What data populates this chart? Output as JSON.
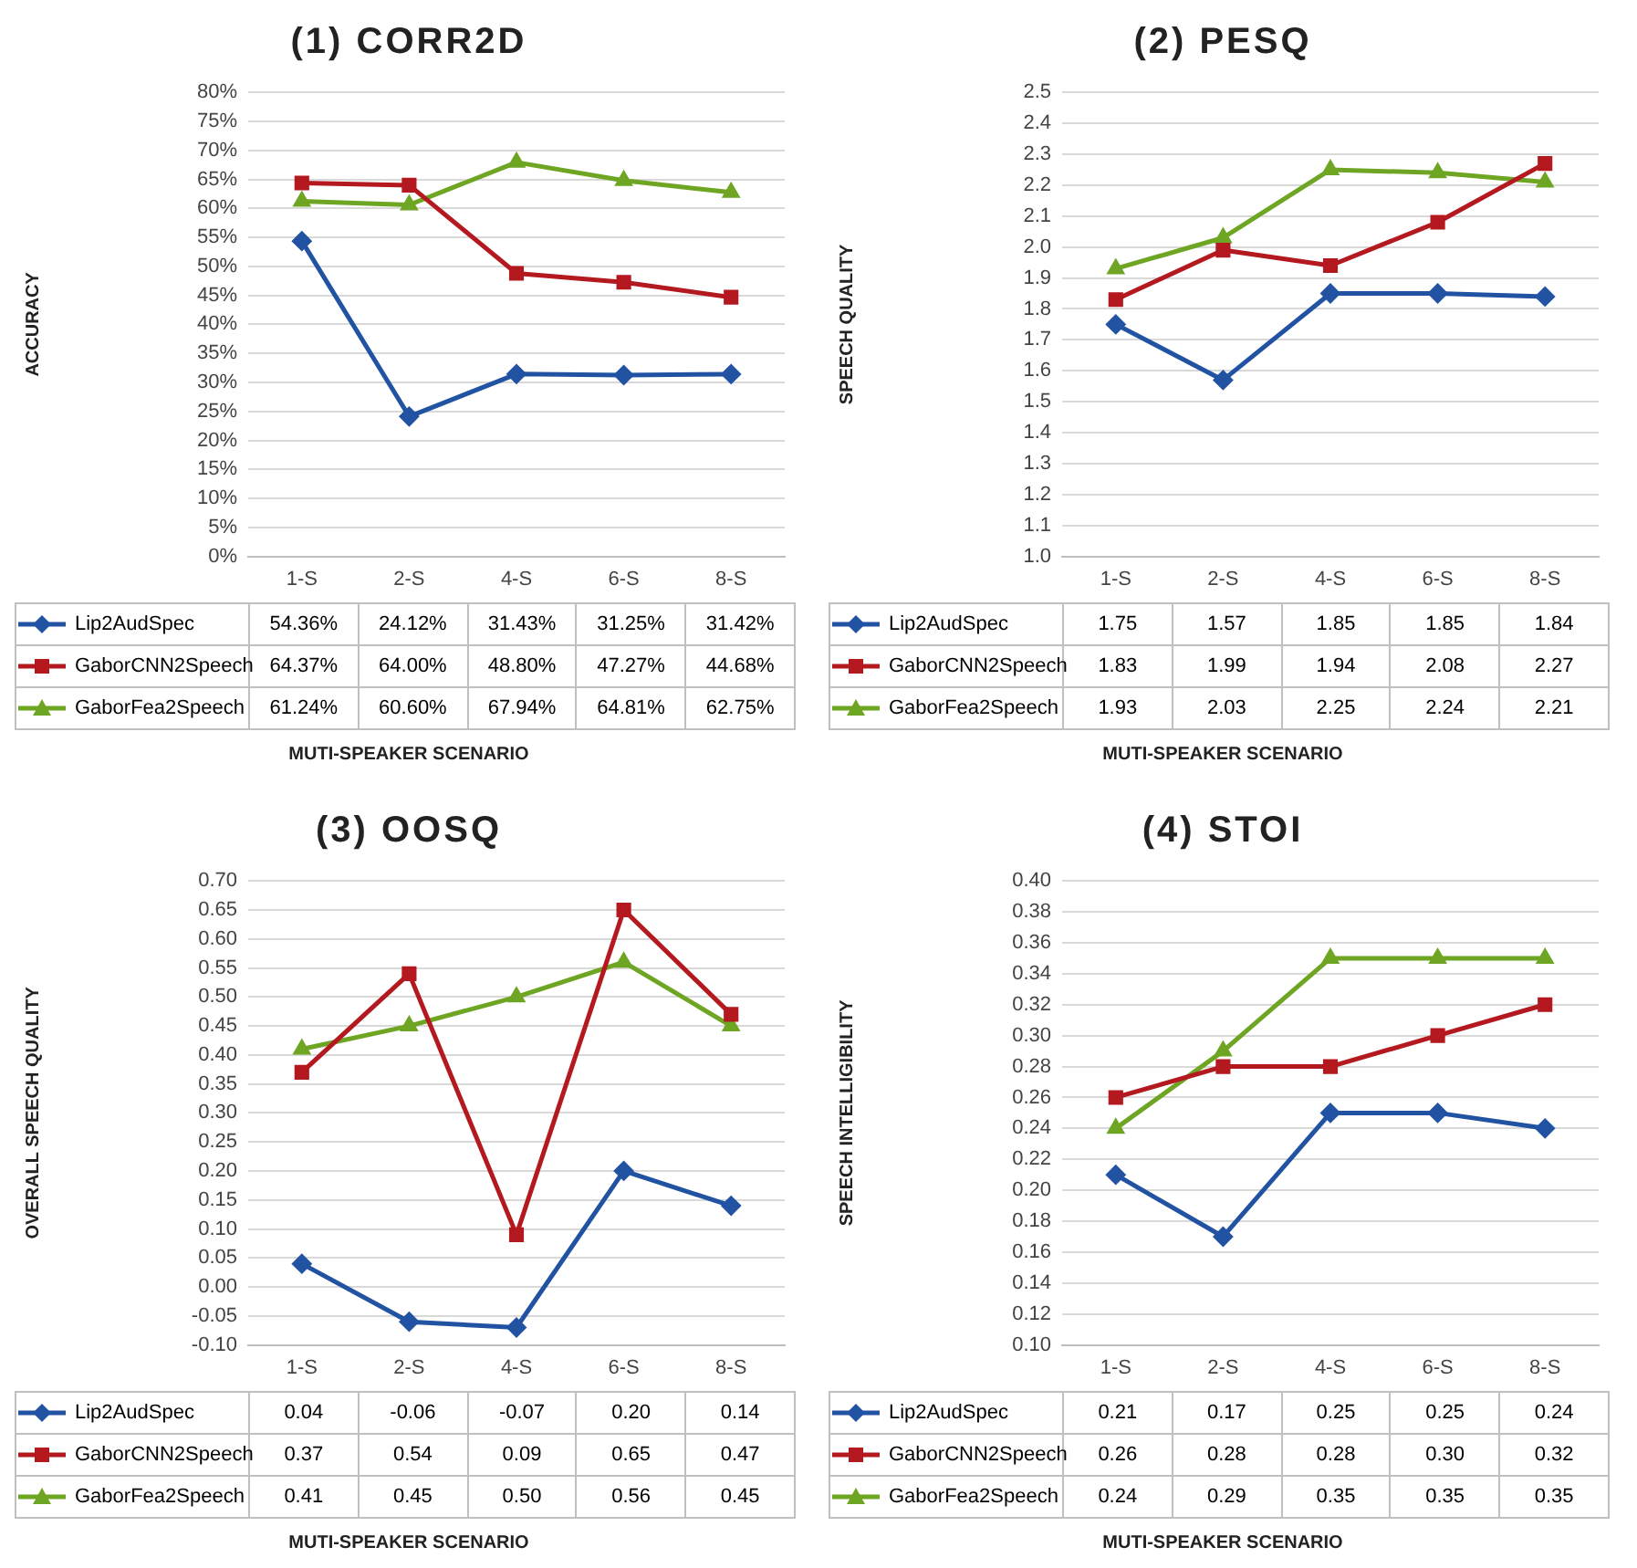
{
  "chart_data": [
    {
      "type": "line",
      "title": "(1) CORR2D",
      "ylabel": "ACCURACY",
      "xlabel": "MUTI-SPEAKER SCENARIO",
      "categories": [
        "1-S",
        "2-S",
        "4-S",
        "6-S",
        "8-S"
      ],
      "ylim": [
        0,
        80
      ],
      "yticks": [
        {
          "value": 0,
          "label": "0%"
        },
        {
          "value": 5,
          "label": "5%"
        },
        {
          "value": 10,
          "label": "10%"
        },
        {
          "value": 15,
          "label": "15%"
        },
        {
          "value": 20,
          "label": "20%"
        },
        {
          "value": 25,
          "label": "25%"
        },
        {
          "value": 30,
          "label": "30%"
        },
        {
          "value": 35,
          "label": "35%"
        },
        {
          "value": 40,
          "label": "40%"
        },
        {
          "value": 45,
          "label": "45%"
        },
        {
          "value": 50,
          "label": "50%"
        },
        {
          "value": 55,
          "label": "55%"
        },
        {
          "value": 60,
          "label": "60%"
        },
        {
          "value": 65,
          "label": "65%"
        },
        {
          "value": 70,
          "label": "70%"
        },
        {
          "value": 75,
          "label": "75%"
        },
        {
          "value": 80,
          "label": "80%"
        }
      ],
      "grid": "y",
      "legend": "bottom",
      "series": [
        {
          "name": "Lip2AudSpec",
          "color": "#2253a3",
          "marker": "diamond",
          "values": [
            54.36,
            24.12,
            31.43,
            31.25,
            31.42
          ],
          "value_labels": [
            "54.36%",
            "24.12%",
            "31.43%",
            "31.25%",
            "31.42%"
          ]
        },
        {
          "name": "GaborCNN2Speech",
          "color": "#b3191e",
          "marker": "square",
          "values": [
            64.37,
            64.0,
            48.8,
            47.27,
            44.68
          ],
          "value_labels": [
            "64.37%",
            "64.00%",
            "48.80%",
            "47.27%",
            "44.68%"
          ]
        },
        {
          "name": "GaborFea2Speech",
          "color": "#6ea523",
          "marker": "triangle",
          "values": [
            61.24,
            60.6,
            67.94,
            64.81,
            62.75
          ],
          "value_labels": [
            "61.24%",
            "60.60%",
            "67.94%",
            "64.81%",
            "62.75%"
          ]
        }
      ]
    },
    {
      "type": "line",
      "title": "(2) PESQ",
      "ylabel": "SPEECH QUALITY",
      "xlabel": "MUTI-SPEAKER SCENARIO",
      "categories": [
        "1-S",
        "2-S",
        "4-S",
        "6-S",
        "8-S"
      ],
      "ylim": [
        1.0,
        2.5
      ],
      "yticks": [
        {
          "value": 1.0,
          "label": "1.0"
        },
        1.1,
        1.2,
        1.3,
        1.4,
        1.5,
        1.6,
        1.7,
        1.8,
        1.9,
        {
          "value": 2.0,
          "label": "2.0"
        },
        2.1,
        2.2,
        2.3,
        2.4,
        2.5
      ],
      "grid": "y",
      "legend": "bottom",
      "series": [
        {
          "name": "Lip2AudSpec",
          "color": "#2253a3",
          "marker": "diamond",
          "values": [
            1.75,
            1.57,
            1.85,
            1.85,
            1.84
          ],
          "value_labels": [
            "1.75",
            "1.57",
            "1.85",
            "1.85",
            "1.84"
          ]
        },
        {
          "name": "GaborCNN2Speech",
          "color": "#b3191e",
          "marker": "square",
          "values": [
            1.83,
            1.99,
            1.94,
            2.08,
            2.27
          ],
          "value_labels": [
            "1.83",
            "1.99",
            "1.94",
            "2.08",
            "2.27"
          ]
        },
        {
          "name": "GaborFea2Speech",
          "color": "#6ea523",
          "marker": "triangle",
          "values": [
            1.93,
            2.03,
            2.25,
            2.24,
            2.21
          ],
          "value_labels": [
            "1.93",
            "2.03",
            "2.25",
            "2.24",
            "2.21"
          ]
        }
      ]
    },
    {
      "type": "line",
      "title": "(3) OOSQ",
      "ylabel": "OVERALL SPEECH QUALITY",
      "xlabel": "MUTI-SPEAKER SCENARIO",
      "categories": [
        "1-S",
        "2-S",
        "4-S",
        "6-S",
        "8-S"
      ],
      "ylim": [
        -0.1,
        0.7
      ],
      "yticks": [
        {
          "value": -0.1,
          "label": "-0.10"
        },
        -0.05,
        {
          "value": 0,
          "label": "0.00"
        },
        0.05,
        {
          "value": 0.1,
          "label": "0.10"
        },
        0.15,
        {
          "value": 0.2,
          "label": "0.20"
        },
        0.25,
        {
          "value": 0.3,
          "label": "0.30"
        },
        0.35,
        {
          "value": 0.4,
          "label": "0.40"
        },
        0.45,
        {
          "value": 0.5,
          "label": "0.50"
        },
        0.55,
        {
          "value": 0.6,
          "label": "0.60"
        },
        0.65,
        {
          "value": 0.7,
          "label": "0.70"
        }
      ],
      "grid": "y",
      "legend": "bottom",
      "series": [
        {
          "name": "Lip2AudSpec",
          "color": "#2253a3",
          "marker": "diamond",
          "values": [
            0.04,
            -0.06,
            -0.07,
            0.2,
            0.14
          ],
          "value_labels": [
            "0.04",
            "-0.06",
            "-0.07",
            "0.20",
            "0.14"
          ]
        },
        {
          "name": "GaborCNN2Speech",
          "color": "#b3191e",
          "marker": "square",
          "values": [
            0.37,
            0.54,
            0.09,
            0.65,
            0.47
          ],
          "value_labels": [
            "0.37",
            "0.54",
            "0.09",
            "0.65",
            "0.47"
          ]
        },
        {
          "name": "GaborFea2Speech",
          "color": "#6ea523",
          "marker": "triangle",
          "values": [
            0.41,
            0.45,
            0.5,
            0.56,
            0.45
          ],
          "value_labels": [
            "0.41",
            "0.45",
            "0.50",
            "0.56",
            "0.45"
          ]
        }
      ]
    },
    {
      "type": "line",
      "title": "(4) STOI",
      "ylabel": "SPEECH INTELLIGIBILITY",
      "xlabel": "MUTI-SPEAKER SCENARIO",
      "categories": [
        "1-S",
        "2-S",
        "4-S",
        "6-S",
        "8-S"
      ],
      "ylim": [
        0.1,
        0.4
      ],
      "yticks": [
        {
          "value": 0.1,
          "label": "0.10"
        },
        0.12,
        0.14,
        0.16,
        0.18,
        {
          "value": 0.2,
          "label": "0.20"
        },
        0.22,
        0.24,
        0.26,
        0.28,
        {
          "value": 0.3,
          "label": "0.30"
        },
        0.32,
        0.34,
        0.36,
        0.38,
        {
          "value": 0.4,
          "label": "0.40"
        }
      ],
      "grid": "y",
      "legend": "bottom",
      "series": [
        {
          "name": "Lip2AudSpec",
          "color": "#2253a3",
          "marker": "diamond",
          "values": [
            0.21,
            0.17,
            0.25,
            0.25,
            0.24
          ],
          "value_labels": [
            "0.21",
            "0.17",
            "0.25",
            "0.25",
            "0.24"
          ]
        },
        {
          "name": "GaborCNN2Speech",
          "color": "#b3191e",
          "marker": "square",
          "values": [
            0.26,
            0.28,
            0.28,
            0.3,
            0.32
          ],
          "value_labels": [
            "0.26",
            "0.28",
            "0.28",
            "0.30",
            "0.32"
          ]
        },
        {
          "name": "GaborFea2Speech",
          "color": "#6ea523",
          "marker": "triangle",
          "values": [
            0.24,
            0.29,
            0.35,
            0.35,
            0.35
          ],
          "value_labels": [
            "0.24",
            "0.29",
            "0.35",
            "0.35",
            "0.35"
          ]
        }
      ]
    }
  ]
}
